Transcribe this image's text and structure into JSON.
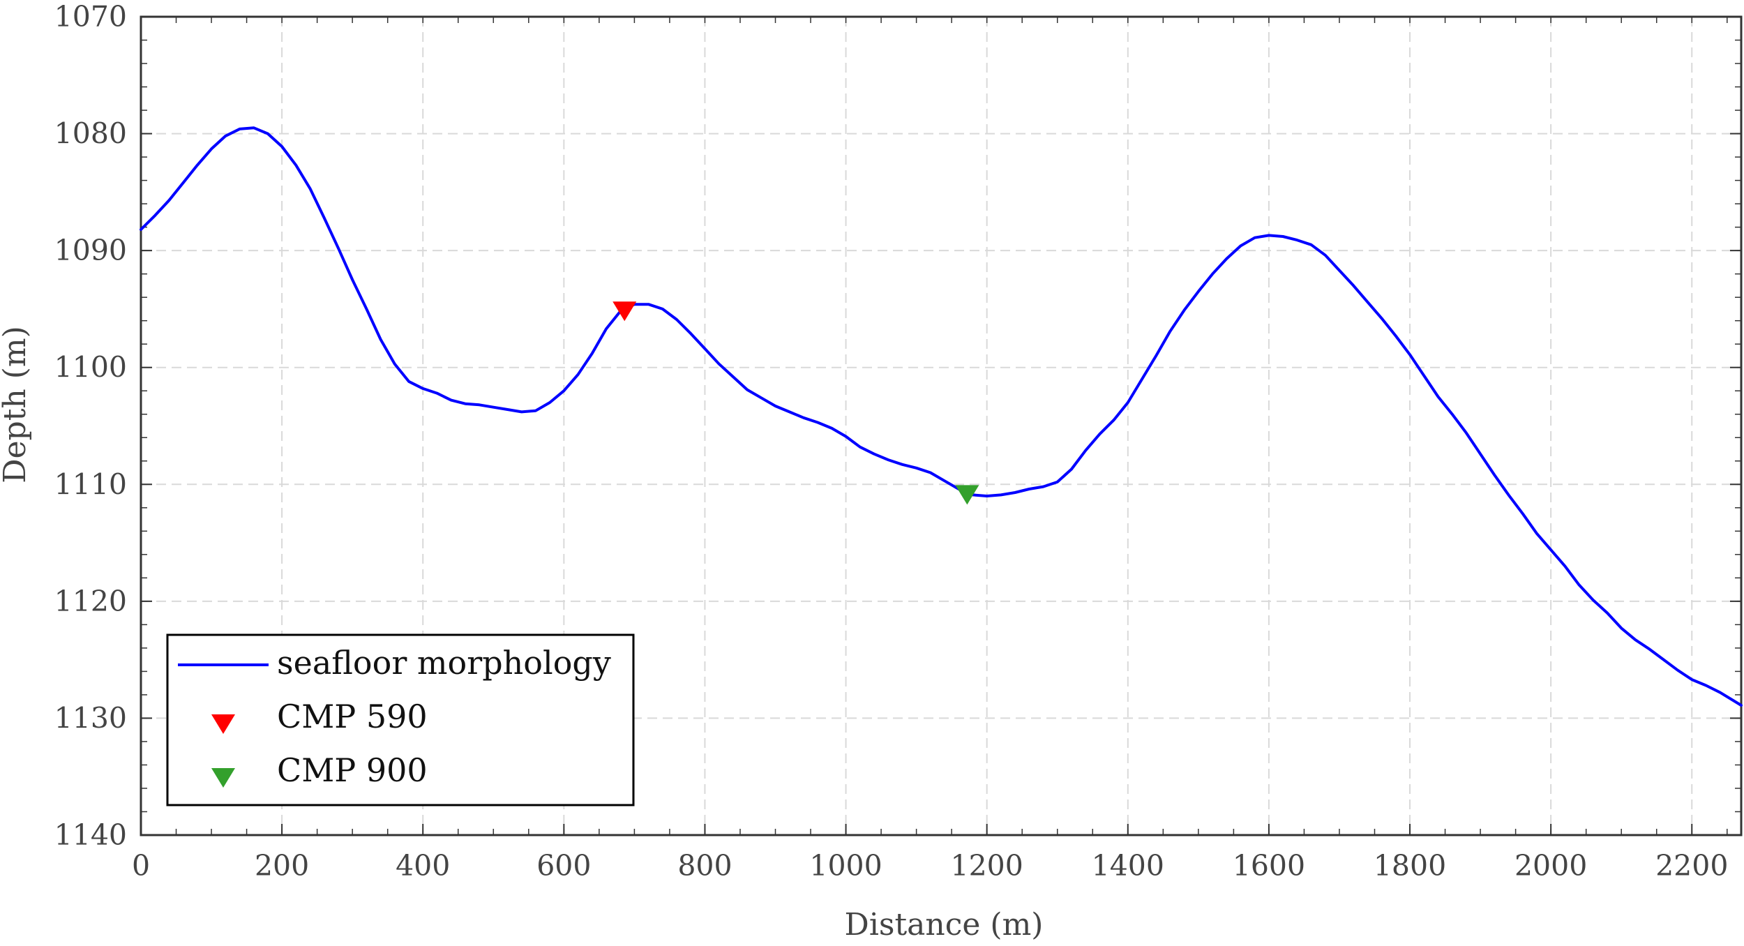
{
  "chart_data": {
    "type": "line",
    "title": "",
    "xlabel": "Distance (m)",
    "ylabel": "Depth (m)",
    "xlim": [
      0,
      2270
    ],
    "ylim": [
      1070,
      1140
    ],
    "y_reversed": true,
    "grid": true,
    "legend_position": "bottom-left",
    "xticks": [
      "0",
      "200",
      "400",
      "600",
      "800",
      "1000",
      "1200",
      "1400",
      "1600",
      "1800",
      "2000",
      "2200"
    ],
    "yticks": [
      "1070",
      "1080",
      "1090",
      "1100",
      "1110",
      "1120",
      "1130",
      "1140"
    ],
    "series": [
      {
        "name": "seafloor morphology",
        "color": "#0000ff",
        "x": [
          0,
          20,
          40,
          60,
          80,
          100,
          120,
          140,
          160,
          180,
          200,
          220,
          240,
          260,
          280,
          300,
          320,
          340,
          360,
          380,
          400,
          420,
          440,
          460,
          480,
          500,
          520,
          540,
          560,
          580,
          600,
          620,
          640,
          660,
          680,
          700,
          720,
          740,
          760,
          780,
          800,
          820,
          840,
          860,
          880,
          900,
          920,
          940,
          960,
          980,
          1000,
          1020,
          1040,
          1060,
          1080,
          1100,
          1120,
          1140,
          1160,
          1180,
          1200,
          1220,
          1240,
          1260,
          1280,
          1300,
          1320,
          1340,
          1360,
          1380,
          1400,
          1420,
          1440,
          1460,
          1480,
          1500,
          1520,
          1540,
          1560,
          1580,
          1600,
          1620,
          1640,
          1660,
          1680,
          1700,
          1720,
          1740,
          1760,
          1780,
          1800,
          1820,
          1840,
          1860,
          1880,
          1900,
          1920,
          1940,
          1960,
          1980,
          2000,
          2020,
          2040,
          2060,
          2080,
          2100,
          2120,
          2140,
          2160,
          2180,
          2200,
          2220,
          2240,
          2270
        ],
        "y": [
          1088.2,
          1087.0,
          1085.7,
          1084.2,
          1082.7,
          1081.3,
          1080.2,
          1079.6,
          1079.5,
          1080.0,
          1081.1,
          1082.7,
          1084.7,
          1087.2,
          1089.8,
          1092.5,
          1095.0,
          1097.6,
          1099.7,
          1101.2,
          1101.8,
          1102.2,
          1102.8,
          1103.1,
          1103.2,
          1103.4,
          1103.6,
          1103.8,
          1103.7,
          1103.0,
          1102.0,
          1100.6,
          1098.8,
          1096.7,
          1095.2,
          1094.6,
          1094.6,
          1095.0,
          1095.9,
          1097.1,
          1098.4,
          1099.7,
          1100.8,
          1101.9,
          1102.6,
          1103.3,
          1103.8,
          1104.3,
          1104.7,
          1105.2,
          1105.9,
          1106.8,
          1107.4,
          1107.9,
          1108.3,
          1108.6,
          1109.0,
          1109.7,
          1110.4,
          1110.9,
          1111.0,
          1110.9,
          1110.7,
          1110.4,
          1110.2,
          1109.8,
          1108.7,
          1107.1,
          1105.7,
          1104.5,
          1103.0,
          1101.0,
          1099.0,
          1096.9,
          1095.1,
          1093.5,
          1092.0,
          1090.7,
          1089.6,
          1088.9,
          1088.7,
          1088.8,
          1089.1,
          1089.5,
          1090.4,
          1091.7,
          1093.0,
          1094.4,
          1095.8,
          1097.3,
          1098.9,
          1100.7,
          1102.5,
          1104.0,
          1105.6,
          1107.4,
          1109.2,
          1110.9,
          1112.5,
          1114.2,
          1115.6,
          1117.0,
          1118.6,
          1119.9,
          1121.0,
          1122.3,
          1123.3,
          1124.1,
          1125.0,
          1125.9,
          1126.7,
          1127.2,
          1127.8,
          1128.9
        ]
      },
      {
        "name": "CMP 590",
        "type": "marker",
        "marker": "triangle-down",
        "color": "#ff0000",
        "x": [
          686
        ],
        "y": [
          1095.2
        ]
      },
      {
        "name": "CMP 900",
        "type": "marker",
        "marker": "triangle-down",
        "color": "#33a02c",
        "x": [
          1172
        ],
        "y": [
          1110.9
        ]
      }
    ]
  }
}
